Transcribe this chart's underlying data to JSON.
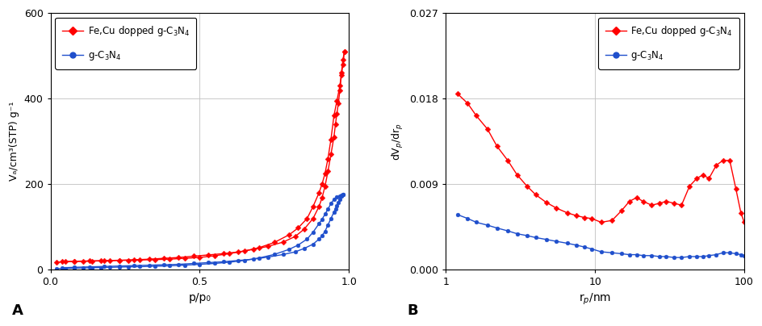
{
  "panel_A": {
    "xlabel": "p/p₀",
    "ylabel": "Vₐ/cm³(STP) g⁻¹",
    "xlim": [
      0,
      1.0
    ],
    "ylim": [
      0,
      600
    ],
    "yticks": [
      0,
      200,
      400,
      600
    ],
    "xticks": [
      0,
      0.5,
      1.0
    ],
    "label_A": "A",
    "red_adsorption": [
      [
        0.02,
        18
      ],
      [
        0.05,
        19
      ],
      [
        0.08,
        19.5
      ],
      [
        0.11,
        20
      ],
      [
        0.14,
        20.5
      ],
      [
        0.17,
        21
      ],
      [
        0.2,
        21.5
      ],
      [
        0.23,
        22
      ],
      [
        0.26,
        22.5
      ],
      [
        0.3,
        23
      ],
      [
        0.35,
        24
      ],
      [
        0.4,
        25
      ],
      [
        0.45,
        27
      ],
      [
        0.5,
        29
      ],
      [
        0.55,
        33
      ],
      [
        0.6,
        38
      ],
      [
        0.65,
        44
      ],
      [
        0.7,
        52
      ],
      [
        0.75,
        64
      ],
      [
        0.8,
        82
      ],
      [
        0.83,
        98
      ],
      [
        0.86,
        120
      ],
      [
        0.88,
        148
      ],
      [
        0.9,
        180
      ],
      [
        0.91,
        200
      ],
      [
        0.92,
        225
      ],
      [
        0.93,
        260
      ],
      [
        0.94,
        305
      ],
      [
        0.95,
        360
      ],
      [
        0.96,
        395
      ],
      [
        0.97,
        430
      ],
      [
        0.975,
        460
      ],
      [
        0.98,
        490
      ],
      [
        0.985,
        510
      ]
    ],
    "red_desorption": [
      [
        0.985,
        510
      ],
      [
        0.98,
        480
      ],
      [
        0.975,
        455
      ],
      [
        0.97,
        420
      ],
      [
        0.965,
        390
      ],
      [
        0.96,
        365
      ],
      [
        0.955,
        340
      ],
      [
        0.95,
        310
      ],
      [
        0.94,
        270
      ],
      [
        0.93,
        230
      ],
      [
        0.92,
        195
      ],
      [
        0.91,
        168
      ],
      [
        0.9,
        148
      ],
      [
        0.88,
        120
      ],
      [
        0.85,
        95
      ],
      [
        0.82,
        78
      ],
      [
        0.78,
        65
      ],
      [
        0.73,
        55
      ],
      [
        0.68,
        48
      ],
      [
        0.63,
        42
      ],
      [
        0.58,
        38
      ],
      [
        0.53,
        35
      ],
      [
        0.48,
        32
      ],
      [
        0.43,
        29
      ],
      [
        0.38,
        27
      ],
      [
        0.33,
        25
      ],
      [
        0.28,
        23.5
      ],
      [
        0.23,
        22.5
      ],
      [
        0.18,
        21.5
      ],
      [
        0.13,
        21
      ],
      [
        0.08,
        20
      ],
      [
        0.04,
        19.5
      ]
    ],
    "blue_adsorption": [
      [
        0.02,
        3
      ],
      [
        0.05,
        3.5
      ],
      [
        0.08,
        4
      ],
      [
        0.11,
        4.5
      ],
      [
        0.14,
        5
      ],
      [
        0.17,
        5.5
      ],
      [
        0.2,
        6
      ],
      [
        0.23,
        6.5
      ],
      [
        0.26,
        7
      ],
      [
        0.3,
        7.5
      ],
      [
        0.35,
        8.5
      ],
      [
        0.4,
        9.5
      ],
      [
        0.45,
        11
      ],
      [
        0.5,
        13
      ],
      [
        0.55,
        15
      ],
      [
        0.6,
        18
      ],
      [
        0.65,
        22
      ],
      [
        0.7,
        28
      ],
      [
        0.75,
        36
      ],
      [
        0.8,
        48
      ],
      [
        0.83,
        58
      ],
      [
        0.86,
        72
      ],
      [
        0.88,
        88
      ],
      [
        0.9,
        108
      ],
      [
        0.91,
        118
      ],
      [
        0.92,
        130
      ],
      [
        0.93,
        142
      ],
      [
        0.94,
        155
      ],
      [
        0.95,
        165
      ],
      [
        0.96,
        170
      ],
      [
        0.97,
        172
      ],
      [
        0.975,
        174
      ],
      [
        0.98,
        176
      ]
    ],
    "blue_desorption": [
      [
        0.98,
        176
      ],
      [
        0.975,
        172
      ],
      [
        0.97,
        165
      ],
      [
        0.965,
        158
      ],
      [
        0.96,
        150
      ],
      [
        0.955,
        142
      ],
      [
        0.95,
        135
      ],
      [
        0.94,
        120
      ],
      [
        0.93,
        105
      ],
      [
        0.92,
        90
      ],
      [
        0.91,
        80
      ],
      [
        0.9,
        72
      ],
      [
        0.88,
        60
      ],
      [
        0.85,
        50
      ],
      [
        0.82,
        42
      ],
      [
        0.78,
        36
      ],
      [
        0.73,
        30
      ],
      [
        0.68,
        25
      ],
      [
        0.63,
        22
      ],
      [
        0.58,
        19
      ],
      [
        0.53,
        17
      ],
      [
        0.48,
        15
      ],
      [
        0.43,
        13
      ],
      [
        0.38,
        12
      ],
      [
        0.33,
        11
      ],
      [
        0.28,
        10
      ],
      [
        0.23,
        9
      ],
      [
        0.18,
        8
      ],
      [
        0.13,
        7
      ],
      [
        0.08,
        6
      ],
      [
        0.04,
        5
      ]
    ]
  },
  "panel_B": {
    "xlabel": "r$_p$/nm",
    "ylabel": "dV$_p$/dr$_p$",
    "xlim_log": [
      1,
      100
    ],
    "ylim": [
      0,
      0.027
    ],
    "yticks": [
      0,
      0.009,
      0.018,
      0.027
    ],
    "label_B": "B",
    "red_bjh": [
      [
        1.2,
        0.0185
      ],
      [
        1.4,
        0.0175
      ],
      [
        1.6,
        0.0162
      ],
      [
        1.9,
        0.0148
      ],
      [
        2.2,
        0.013
      ],
      [
        2.6,
        0.0115
      ],
      [
        3.0,
        0.01
      ],
      [
        3.5,
        0.0088
      ],
      [
        4.0,
        0.0079
      ],
      [
        4.7,
        0.0071
      ],
      [
        5.5,
        0.0065
      ],
      [
        6.5,
        0.006
      ],
      [
        7.5,
        0.0057
      ],
      [
        8.5,
        0.0055
      ],
      [
        9.5,
        0.0054
      ],
      [
        11.0,
        0.005
      ],
      [
        13.0,
        0.0052
      ],
      [
        15.0,
        0.0062
      ],
      [
        17.0,
        0.0072
      ],
      [
        19.0,
        0.0076
      ],
      [
        21.0,
        0.0072
      ],
      [
        24.0,
        0.0068
      ],
      [
        27.0,
        0.007
      ],
      [
        30.0,
        0.0072
      ],
      [
        34.0,
        0.007
      ],
      [
        38.0,
        0.0068
      ],
      [
        43.0,
        0.0088
      ],
      [
        48.0,
        0.0096
      ],
      [
        53.0,
        0.01
      ],
      [
        58.0,
        0.0096
      ],
      [
        65.0,
        0.011
      ],
      [
        72.0,
        0.0115
      ],
      [
        80.0,
        0.0115
      ],
      [
        88.0,
        0.0085
      ],
      [
        95.0,
        0.006
      ],
      [
        100.0,
        0.005
      ]
    ],
    "blue_bjh": [
      [
        1.2,
        0.0058
      ],
      [
        1.4,
        0.0054
      ],
      [
        1.6,
        0.005
      ],
      [
        1.9,
        0.0047
      ],
      [
        2.2,
        0.0044
      ],
      [
        2.6,
        0.0041
      ],
      [
        3.0,
        0.0038
      ],
      [
        3.5,
        0.0036
      ],
      [
        4.0,
        0.0034
      ],
      [
        4.7,
        0.0032
      ],
      [
        5.5,
        0.003
      ],
      [
        6.5,
        0.0028
      ],
      [
        7.5,
        0.0026
      ],
      [
        8.5,
        0.0024
      ],
      [
        9.5,
        0.0022
      ],
      [
        11.0,
        0.0019
      ],
      [
        13.0,
        0.0018
      ],
      [
        15.0,
        0.0017
      ],
      [
        17.0,
        0.0016
      ],
      [
        19.0,
        0.0016
      ],
      [
        21.0,
        0.0015
      ],
      [
        24.0,
        0.0015
      ],
      [
        27.0,
        0.0014
      ],
      [
        30.0,
        0.0014
      ],
      [
        34.0,
        0.0013
      ],
      [
        38.0,
        0.0013
      ],
      [
        43.0,
        0.0014
      ],
      [
        48.0,
        0.0014
      ],
      [
        53.0,
        0.0014
      ],
      [
        58.0,
        0.0015
      ],
      [
        65.0,
        0.0016
      ],
      [
        72.0,
        0.0018
      ],
      [
        80.0,
        0.0018
      ],
      [
        88.0,
        0.0017
      ],
      [
        95.0,
        0.0016
      ],
      [
        100.0,
        0.0015
      ]
    ]
  },
  "red_color": "#FF0000",
  "blue_color": "#1F4FCC",
  "legend_red_label": "Fe,Cu dopped g-C$_3$N$_4$",
  "legend_blue_label": "g-C$_3$N$_4$",
  "background": "#FFFFFF",
  "grid_color": "#C0C0C0"
}
